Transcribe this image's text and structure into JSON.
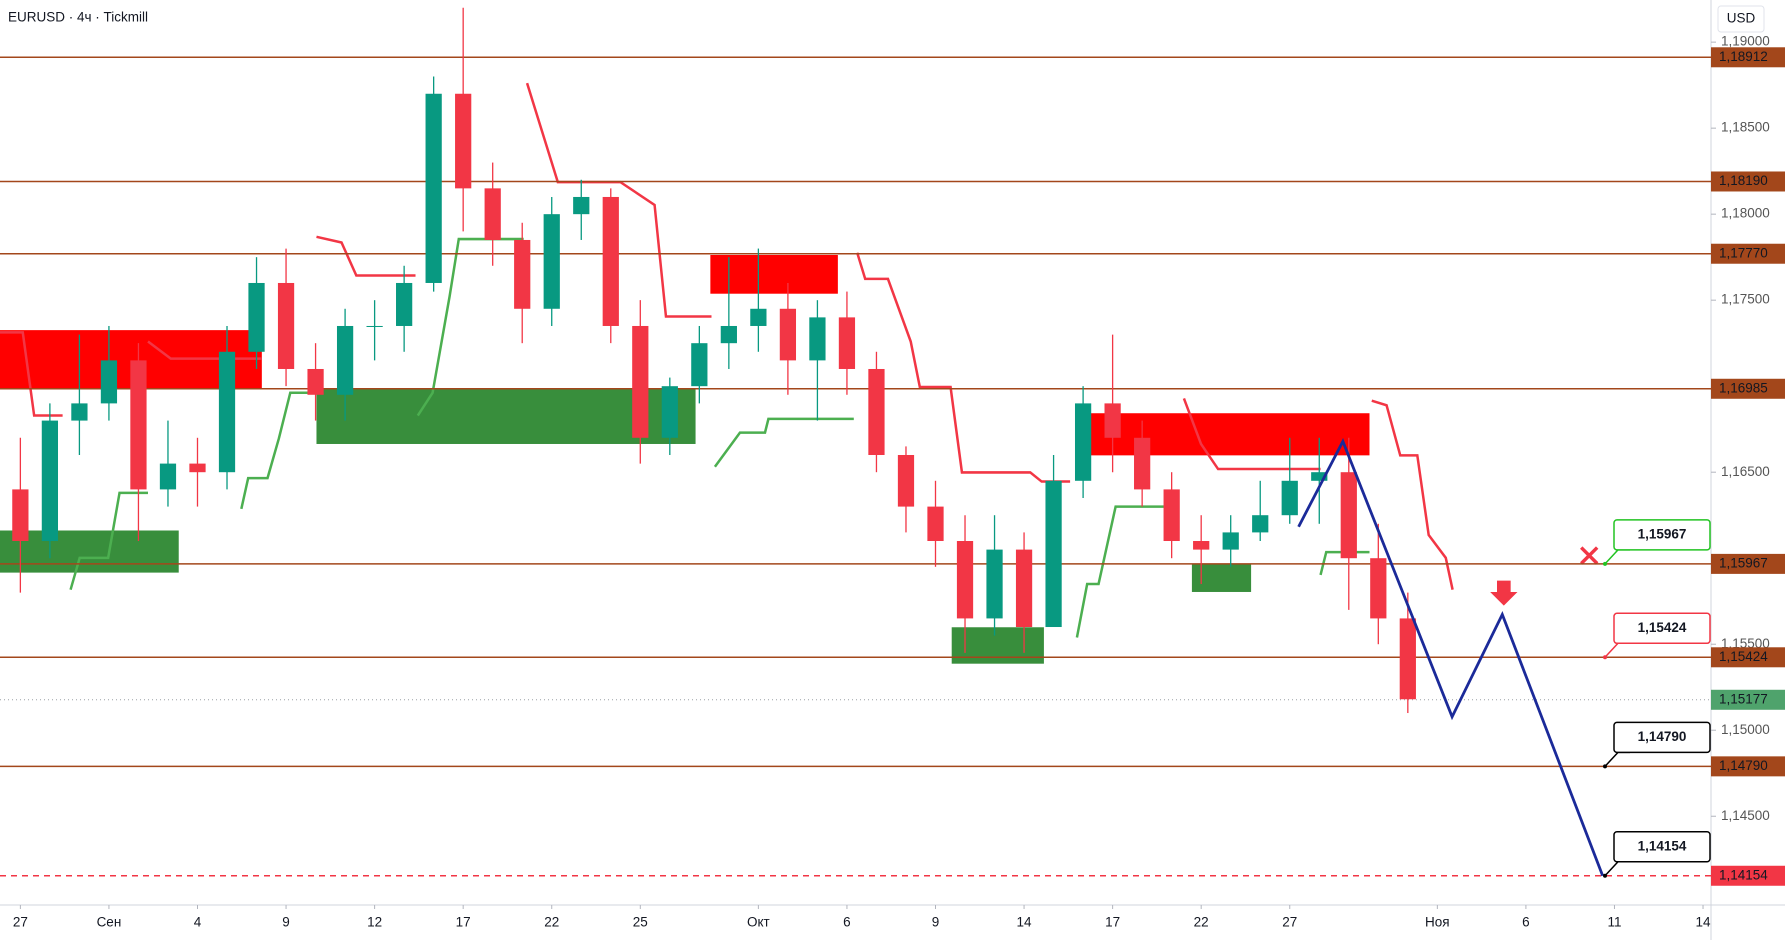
{
  "chart_data": {
    "type": "candlestick",
    "title": "EURUSD · 4ч · Tickmill",
    "currency": "USD",
    "x": [
      0,
      1,
      2,
      3,
      4,
      5,
      6,
      7,
      8,
      9,
      10,
      11,
      12,
      13,
      14,
      15,
      16,
      17,
      18,
      19,
      20,
      21,
      22,
      23,
      24,
      25,
      26,
      27,
      28,
      29,
      30,
      31,
      32,
      33,
      34,
      35,
      36,
      37,
      38,
      39,
      40,
      41,
      42,
      43,
      44,
      45,
      46,
      47
    ],
    "open": [
      1.164,
      1.161,
      1.168,
      1.169,
      1.1715,
      1.164,
      1.1655,
      1.165,
      1.172,
      1.176,
      1.171,
      1.1695,
      1.1735,
      1.1735,
      1.176,
      1.187,
      1.1815,
      1.1785,
      1.1745,
      1.18,
      1.181,
      1.1735,
      1.167,
      1.17,
      1.1725,
      1.1735,
      1.1745,
      1.1715,
      1.174,
      1.171,
      1.166,
      1.163,
      1.161,
      1.1565,
      1.1605,
      1.156,
      1.1645,
      1.169,
      1.167,
      1.164,
      1.161,
      1.1605,
      1.1615,
      1.1625,
      1.1645,
      1.165,
      1.16,
      1.1565
    ],
    "high": [
      1.167,
      1.169,
      1.173,
      1.1735,
      1.1725,
      1.168,
      1.167,
      1.1735,
      1.1775,
      1.178,
      1.1725,
      1.1745,
      1.175,
      1.177,
      1.188,
      1.192,
      1.183,
      1.1795,
      1.181,
      1.182,
      1.1815,
      1.175,
      1.1705,
      1.1735,
      1.1775,
      1.178,
      1.176,
      1.175,
      1.1755,
      1.172,
      1.1665,
      1.1645,
      1.1625,
      1.1625,
      1.1615,
      1.166,
      1.17,
      1.173,
      1.168,
      1.165,
      1.1625,
      1.1625,
      1.1645,
      1.167,
      1.167,
      1.167,
      1.162,
      1.158
    ],
    "low": [
      1.158,
      1.16,
      1.166,
      1.168,
      1.161,
      1.163,
      1.163,
      1.164,
      1.171,
      1.17,
      1.168,
      1.168,
      1.1715,
      1.172,
      1.1755,
      1.179,
      1.177,
      1.1725,
      1.1735,
      1.1785,
      1.1725,
      1.1655,
      1.166,
      1.169,
      1.171,
      1.172,
      1.1695,
      1.168,
      1.1695,
      1.165,
      1.1615,
      1.1595,
      1.1545,
      1.1555,
      1.1545,
      1.156,
      1.1635,
      1.165,
      1.163,
      1.16,
      1.1585,
      1.1595,
      1.161,
      1.162,
      1.162,
      1.157,
      1.155,
      1.151
    ],
    "close": [
      1.161,
      1.168,
      1.169,
      1.1715,
      1.164,
      1.1655,
      1.165,
      1.172,
      1.176,
      1.171,
      1.1695,
      1.1735,
      1.1735,
      1.176,
      1.187,
      1.1815,
      1.1785,
      1.1745,
      1.18,
      1.181,
      1.1735,
      1.167,
      1.17,
      1.1725,
      1.1735,
      1.1745,
      1.1715,
      1.174,
      1.171,
      1.166,
      1.163,
      1.161,
      1.1565,
      1.1605,
      1.156,
      1.1645,
      1.169,
      1.167,
      1.164,
      1.161,
      1.1605,
      1.1615,
      1.1625,
      1.1645,
      1.165,
      1.16,
      1.1565,
      1.1518
    ],
    "up_color": "#089981",
    "down_color": "#f23645",
    "xlim": [
      -0.69,
      57.27
    ],
    "ylim": [
      1.13984,
      1.19245
    ],
    "xticks": [
      {
        "value": 0,
        "label": "27"
      },
      {
        "value": 3,
        "label": "Сен"
      },
      {
        "value": 6,
        "label": "4"
      },
      {
        "value": 9,
        "label": "9"
      },
      {
        "value": 12,
        "label": "12"
      },
      {
        "value": 15,
        "label": "17"
      },
      {
        "value": 18,
        "label": "22"
      },
      {
        "value": 21,
        "label": "25"
      },
      {
        "value": 25,
        "label": "Окт"
      },
      {
        "value": 28,
        "label": "6"
      },
      {
        "value": 31,
        "label": "9"
      },
      {
        "value": 34,
        "label": "14"
      },
      {
        "value": 37,
        "label": "17"
      },
      {
        "value": 40,
        "label": "22"
      },
      {
        "value": 43,
        "label": "27"
      },
      {
        "value": 48,
        "label": "Ноя"
      },
      {
        "value": 51,
        "label": "6"
      },
      {
        "value": 54,
        "label": "11"
      },
      {
        "value": 57,
        "label": "14"
      }
    ],
    "yticks": [
      {
        "value": 1.19,
        "label": "1,19000"
      },
      {
        "value": 1.185,
        "label": "1,18500"
      },
      {
        "value": 1.18,
        "label": "1,18000"
      },
      {
        "value": 1.175,
        "label": "1,17500"
      },
      {
        "value": 1.165,
        "label": "1,16500"
      },
      {
        "value": 1.155,
        "label": "1,15500"
      },
      {
        "value": 1.15,
        "label": "1,15000"
      },
      {
        "value": 1.145,
        "label": "1,14500"
      }
    ],
    "levels": [
      {
        "value": 1.18912,
        "label": "1,18912"
      },
      {
        "value": 1.1819,
        "label": "1,18190"
      },
      {
        "value": 1.1777,
        "label": "1,17770"
      },
      {
        "value": 1.16985,
        "label": "1,16985"
      },
      {
        "value": 1.15967,
        "label": "1,15967"
      },
      {
        "value": 1.15424,
        "label": "1,15424"
      },
      {
        "value": 1.1479,
        "label": "1,14790"
      }
    ],
    "level_color": "#a3471b",
    "target_level": {
      "value": 1.14154,
      "label": "1,14154",
      "color": "#f23645"
    },
    "last_price": {
      "value": 1.15177,
      "label": "1,15177",
      "color": "#4fa36c"
    },
    "callouts": [
      {
        "value": 1.15967,
        "label": "1,15967",
        "color": "#22c322"
      },
      {
        "value": 1.15424,
        "label": "1,15424",
        "color": "#f23645"
      },
      {
        "value": 1.1479,
        "label": "1,14790",
        "color": "#000000"
      },
      {
        "value": 1.14154,
        "label": "1,14154",
        "color": "#000000"
      }
    ],
    "forecast": {
      "x": [
        43.3,
        44.8,
        48.5,
        50.2,
        53.6
      ],
      "values": [
        1.16183,
        1.16679,
        1.15078,
        1.15673,
        1.14154
      ],
      "color": "#1b2a99"
    }
  }
}
